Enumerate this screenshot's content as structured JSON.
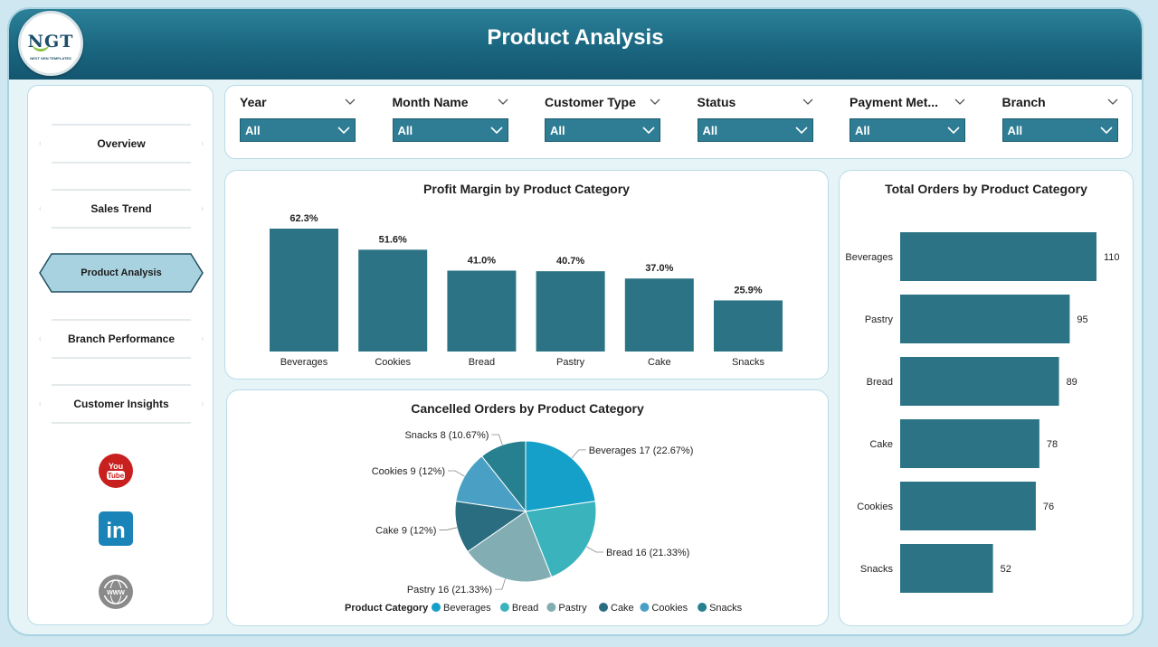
{
  "header": {
    "title": "Product Analysis"
  },
  "logo": {
    "name": "NGT",
    "tagline": "NEXT GEN TEMPLATES"
  },
  "nav": [
    {
      "label": "Overview",
      "active": false
    },
    {
      "label": "Sales Trend",
      "active": false
    },
    {
      "label": "Product Analysis",
      "active": true
    },
    {
      "label": "Branch Performance",
      "active": false
    },
    {
      "label": "Customer Insights",
      "active": false
    }
  ],
  "social": [
    {
      "icon": "youtube-icon",
      "text": "You Tube"
    },
    {
      "icon": "linkedin-icon",
      "text": "in"
    },
    {
      "icon": "web-icon",
      "text": "WWW"
    }
  ],
  "filters": [
    {
      "label": "Year",
      "value": "All"
    },
    {
      "label": "Month Name",
      "value": "All"
    },
    {
      "label": "Customer Type",
      "value": "All"
    },
    {
      "label": "Status",
      "value": "All"
    },
    {
      "label": "Payment Met...",
      "value": "All"
    },
    {
      "label": "Branch",
      "value": "All"
    }
  ],
  "colors": {
    "bar": "#2b7385",
    "header": "#1a6680",
    "accent": "#a9d2e0"
  },
  "chart_data": [
    {
      "type": "bar",
      "title": "Profit Margin by Product Category",
      "categories": [
        "Beverages",
        "Cookies",
        "Bread",
        "Pastry",
        "Cake",
        "Snacks"
      ],
      "values": [
        62.3,
        51.6,
        41.0,
        40.7,
        37.0,
        25.9
      ],
      "labels": [
        "62.3%",
        "51.6%",
        "41.0%",
        "40.7%",
        "37.0%",
        "25.9%"
      ],
      "unit": "%",
      "ylim": [
        0,
        62.3
      ]
    },
    {
      "type": "bar",
      "orientation": "horizontal",
      "title": "Total Orders by Product Category",
      "categories": [
        "Beverages",
        "Pastry",
        "Bread",
        "Cake",
        "Cookies",
        "Snacks"
      ],
      "values": [
        110,
        95,
        89,
        78,
        76,
        52
      ],
      "xlim": [
        0,
        110
      ]
    },
    {
      "type": "pie",
      "title": "Cancelled Orders by Product Category",
      "legend_title": "Product Category",
      "slices": [
        {
          "name": "Beverages",
          "value": 17,
          "label": "Beverages 17 (22.67%)",
          "color": "#14a0c8"
        },
        {
          "name": "Bread",
          "value": 16,
          "label": "Bread 16 (21.33%)",
          "color": "#3bb3bd"
        },
        {
          "name": "Pastry",
          "value": 16,
          "label": "Pastry 16 (21.33%)",
          "color": "#82aeb3"
        },
        {
          "name": "Cake",
          "value": 9,
          "label": "Cake 9 (12%)",
          "color": "#2b6d80"
        },
        {
          "name": "Cookies",
          "value": 9,
          "label": "Cookies 9 (12%)",
          "color": "#4aa0c4"
        },
        {
          "name": "Snacks",
          "value": 8,
          "label": "Snacks 8 (10.67%)",
          "color": "#27808f"
        }
      ]
    }
  ]
}
